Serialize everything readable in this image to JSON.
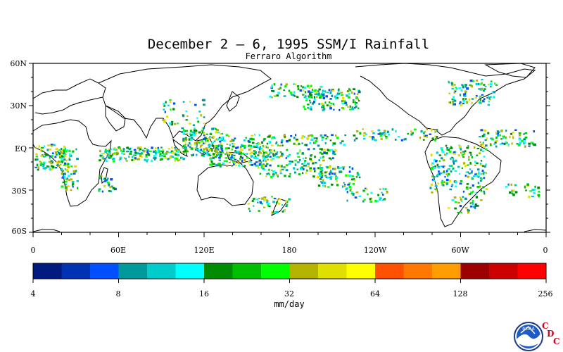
{
  "title": "December 2 – 6, 1995 SSM/I Rainfall",
  "subtitle": "Ferraro Algorithm",
  "latitude_labels": [
    "60N",
    "30N",
    "EQ",
    "30S",
    "60S"
  ],
  "longitude_labels": [
    "0",
    "60E",
    "120E",
    "180",
    "120W",
    "60W",
    "0"
  ],
  "colorbar": {
    "units": "mm/day",
    "labels": [
      "4",
      "8",
      "16",
      "32",
      "64",
      "128",
      "256"
    ],
    "colors": [
      "#001a80",
      "#0033b3",
      "#0050ff",
      "#00999c",
      "#00cccc",
      "#00ffff",
      "#008c00",
      "#00bf00",
      "#00ff00",
      "#b3b300",
      "#e0e000",
      "#ffff00",
      "#ff5000",
      "#ff7800",
      "#ff9c00",
      "#9c0000",
      "#cc0000",
      "#ff0000"
    ]
  },
  "logo": {
    "noaa_text": "NOAA",
    "cdc_letters": [
      "C",
      "D",
      "C"
    ]
  }
}
